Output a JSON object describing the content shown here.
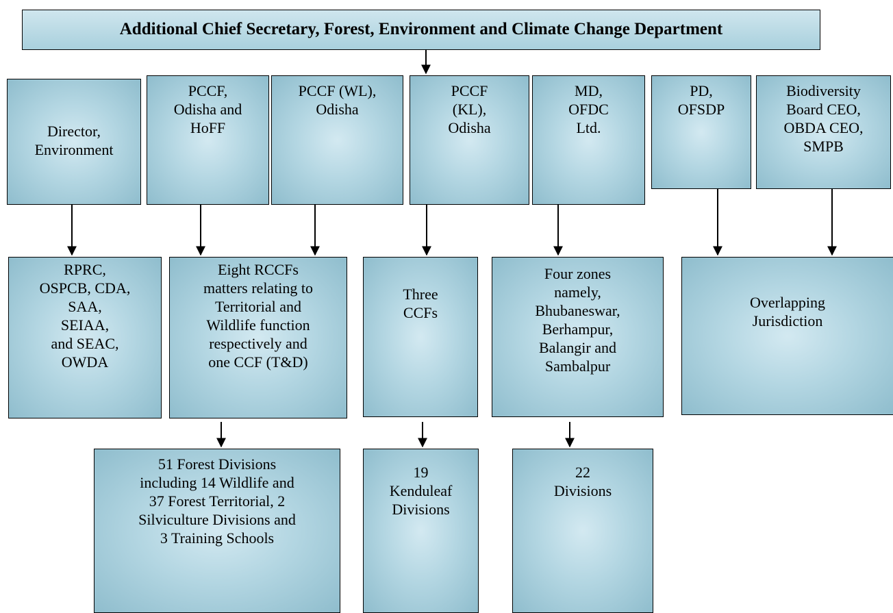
{
  "header": {
    "title": "Additional Chief Secretary, Forest, Environment and Climate Change Department"
  },
  "nodes": [
    {
      "lines": [
        "Director,",
        "Environment"
      ]
    },
    {
      "lines": [
        "PCCF,",
        "Odisha and",
        "HoFF"
      ]
    },
    {
      "lines": [
        "PCCF (WL),",
        "Odisha"
      ]
    },
    {
      "lines": [
        "PCCF",
        "(KL),",
        "Odisha"
      ]
    },
    {
      "lines": [
        "MD,",
        "OFDC",
        "Ltd."
      ]
    },
    {
      "lines": [
        "PD,",
        "OFSDP"
      ]
    },
    {
      "lines": [
        "Biodiversity",
        "Board CEO,",
        "OBDA CEO,",
        "SMPB"
      ]
    },
    {
      "lines": [
        "RPRC,",
        "OSPCB, CDA,",
        "SAA,",
        "SEIAA,",
        "and SEAC,",
        "OWDA"
      ]
    },
    {
      "lines": [
        "Eight RCCFs",
        "matters relating to",
        "Territorial and",
        "Wildlife function",
        "respectively and",
        "one CCF (T&D)"
      ]
    },
    {
      "lines": [
        "Three",
        "CCFs"
      ]
    },
    {
      "lines": [
        "Four zones",
        "namely,",
        "Bhubaneswar,",
        "Berhampur,",
        "Balangir and",
        "Sambalpur"
      ]
    },
    {
      "lines": [
        "Overlapping",
        "Jurisdiction"
      ]
    },
    {
      "lines": [
        "51 Forest Divisions",
        "including 14 Wildlife and",
        "37 Forest Territorial, 2",
        "Silviculture Divisions and",
        "3 Training Schools"
      ]
    },
    {
      "lines": [
        "19",
        "Kenduleaf",
        "Divisions"
      ]
    },
    {
      "lines": [
        "22",
        "Divisions"
      ]
    }
  ]
}
